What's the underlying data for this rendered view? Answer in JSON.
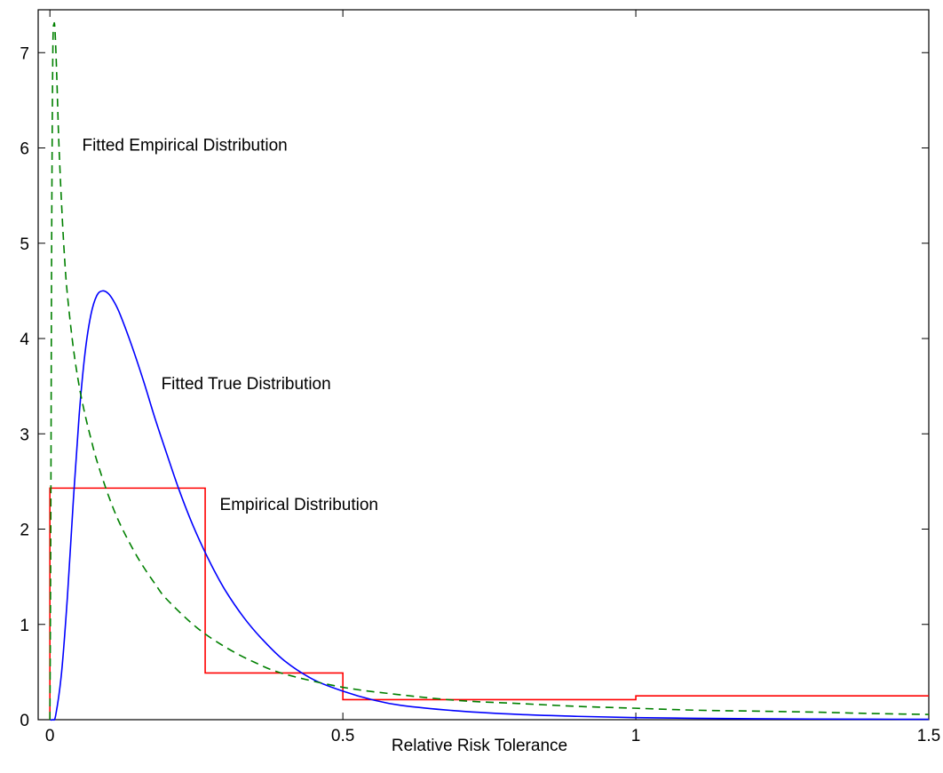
{
  "chart_data": {
    "type": "line",
    "title": "",
    "xlabel": "Relative Risk Tolerance",
    "ylabel": "",
    "xlim": [
      -0.02,
      1.5
    ],
    "ylim": [
      0,
      7.45
    ],
    "xticks": [
      0,
      0.5,
      1,
      1.5
    ],
    "xtick_labels": [
      "0",
      "0.5",
      "1",
      "1.5"
    ],
    "yticks": [
      0,
      1,
      2,
      3,
      4,
      5,
      6,
      7
    ],
    "ytick_labels": [
      "0",
      "1",
      "2",
      "3",
      "4",
      "5",
      "6",
      "7"
    ],
    "grid": false,
    "series": [
      {
        "name": "Empirical Distribution",
        "style": "step",
        "color": "#ff0000",
        "x": [
          0,
          0,
          0.265,
          0.265,
          0.5,
          0.5,
          1.0,
          1.0,
          1.5
        ],
        "y": [
          0,
          2.43,
          2.43,
          0.49,
          0.49,
          0.21,
          0.21,
          0.25,
          0.25
        ]
      },
      {
        "name": "Fitted True Distribution",
        "style": "solid",
        "color": "#0000ff",
        "x": [
          0,
          0.005,
          0.01,
          0.02,
          0.03,
          0.04,
          0.05,
          0.06,
          0.07,
          0.08,
          0.09,
          0.1,
          0.11,
          0.12,
          0.14,
          0.16,
          0.18,
          0.2,
          0.22,
          0.24,
          0.26,
          0.28,
          0.3,
          0.33,
          0.36,
          0.4,
          0.45,
          0.5,
          0.55,
          0.6,
          0.7,
          0.8,
          0.9,
          1.0,
          1.1,
          1.2,
          1.3,
          1.4,
          1.5
        ],
        "y": [
          0,
          0.0,
          0.05,
          0.5,
          1.3,
          2.3,
          3.2,
          3.85,
          4.25,
          4.45,
          4.5,
          4.47,
          4.38,
          4.25,
          3.92,
          3.55,
          3.15,
          2.78,
          2.42,
          2.1,
          1.82,
          1.57,
          1.35,
          1.08,
          0.86,
          0.62,
          0.42,
          0.3,
          0.21,
          0.15,
          0.09,
          0.055,
          0.035,
          0.022,
          0.015,
          0.01,
          0.007,
          0.005,
          0.004
        ]
      },
      {
        "name": "Fitted Empirical Distribution",
        "style": "dashed",
        "color": "#008000",
        "x": [
          0,
          0.0015,
          0.003,
          0.005,
          0.007,
          0.009,
          0.012,
          0.015,
          0.02,
          0.025,
          0.03,
          0.04,
          0.05,
          0.06,
          0.07,
          0.08,
          0.1,
          0.12,
          0.15,
          0.18,
          0.2,
          0.25,
          0.3,
          0.35,
          0.4,
          0.5,
          0.6,
          0.7,
          0.8,
          0.9,
          1.0,
          1.1,
          1.2,
          1.3,
          1.4,
          1.5
        ],
        "y": [
          0,
          2.0,
          5.0,
          7.0,
          7.3,
          7.2,
          6.7,
          6.1,
          5.4,
          4.85,
          4.45,
          3.9,
          3.5,
          3.2,
          2.95,
          2.72,
          2.35,
          2.05,
          1.7,
          1.42,
          1.26,
          0.97,
          0.76,
          0.6,
          0.48,
          0.34,
          0.26,
          0.2,
          0.17,
          0.14,
          0.12,
          0.1,
          0.09,
          0.08,
          0.065,
          0.055
        ]
      }
    ],
    "annotations": [
      {
        "text": "Fitted Empirical Distribution",
        "x": 0.055,
        "y": 5.97
      },
      {
        "text": "Fitted True Distribution",
        "x": 0.19,
        "y": 3.47
      },
      {
        "text": "Empirical Distribution",
        "x": 0.29,
        "y": 2.2
      }
    ]
  }
}
